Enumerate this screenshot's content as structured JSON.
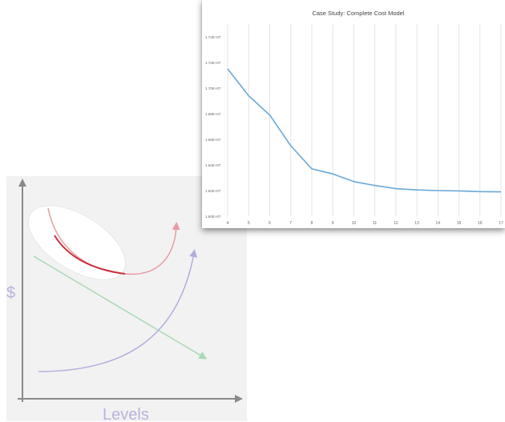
{
  "chart_data": [
    {
      "type": "line",
      "title": "Case Study: Complete Cost Model",
      "xlabel": "",
      "ylabel": "",
      "x": [
        4,
        5,
        6,
        7,
        8,
        9,
        10,
        11,
        12,
        13,
        14,
        15,
        16,
        17
      ],
      "series": [
        {
          "values": [
            17150000,
            16940000,
            16790000,
            16550000,
            16370000,
            16330000,
            16270000,
            16240000,
            16215000,
            16205000,
            16200000,
            16197000,
            16192000,
            16190000
          ],
          "color": "#6aa9d8"
        }
      ],
      "xlim": [
        4,
        17
      ],
      "ylim": [
        16000000,
        17500000
      ],
      "yticks": [
        16000000,
        16200000,
        16400000,
        16600000,
        16800000,
        17000000,
        17200000,
        17400000
      ],
      "ytick_labels": [
        "1.60E+07",
        "1.62E+07",
        "1.64E+07",
        "1.66E+07",
        "1.68E+07",
        "1.70E+07",
        "1.72E+07",
        "1.74E+07"
      ],
      "xtick_labels": [
        "4",
        "5",
        "6",
        "7",
        "8",
        "9",
        "10",
        "11",
        "12",
        "13",
        "14",
        "15",
        "16",
        "17"
      ],
      "grid": "vertical"
    },
    {
      "type": "diagram",
      "ylabel": "$",
      "xlabel": "Levels",
      "colors": {
        "axis": "#8a8a8a",
        "label": "#b7b4dc",
        "red_curve": "#e89aa2",
        "red_highlight": "#c8323f",
        "purple_curve": "#b0aee0",
        "green_line": "#a9d9b6",
        "ellipse_fill": "#ffffff"
      }
    }
  ]
}
